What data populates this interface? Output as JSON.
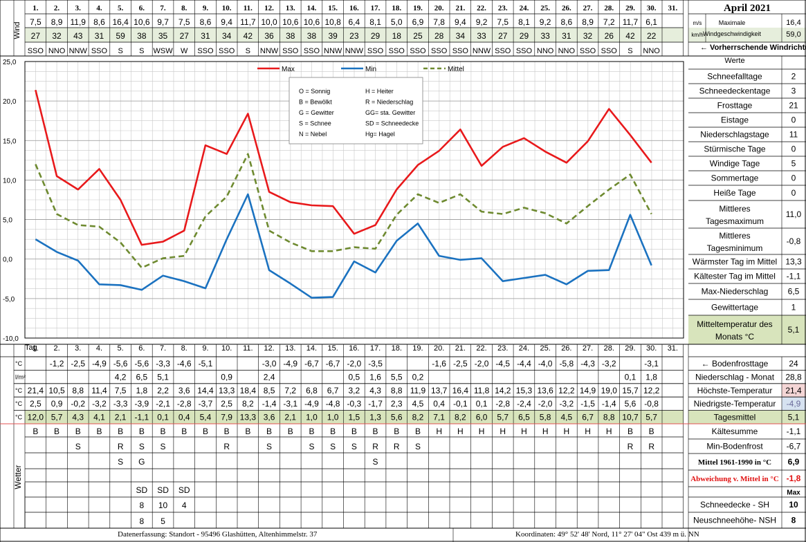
{
  "title": "April 2021",
  "days": [
    "1.",
    "2.",
    "3.",
    "4.",
    "5.",
    "6.",
    "7.",
    "8.",
    "9.",
    "10.",
    "11.",
    "12.",
    "13.",
    "14.",
    "15.",
    "16.",
    "17.",
    "18.",
    "19.",
    "20.",
    "21.",
    "22.",
    "23.",
    "24.",
    "25.",
    "26.",
    "27.",
    "28.",
    "29.",
    "30.",
    "31."
  ],
  "wind": {
    "label": "Wind",
    "ms": [
      "7,5",
      "8,9",
      "11,9",
      "8,6",
      "16,4",
      "10,6",
      "9,7",
      "7,5",
      "8,6",
      "9,4",
      "11,7",
      "10,0",
      "10,6",
      "10,6",
      "10,8",
      "6,4",
      "8,1",
      "5,0",
      "6,9",
      "7,8",
      "9,4",
      "9,2",
      "7,5",
      "8,1",
      "9,2",
      "8,6",
      "8,9",
      "7,2",
      "11,7",
      "6,1",
      ""
    ],
    "kmh": [
      "27",
      "32",
      "43",
      "31",
      "59",
      "38",
      "35",
      "27",
      "31",
      "34",
      "42",
      "36",
      "38",
      "38",
      "39",
      "23",
      "29",
      "18",
      "25",
      "28",
      "34",
      "33",
      "27",
      "29",
      "33",
      "31",
      "32",
      "26",
      "42",
      "22",
      ""
    ],
    "dir": [
      "SSO",
      "NNO",
      "NNW",
      "SSO",
      "S",
      "S",
      "WSW",
      "W",
      "SSO",
      "SSO",
      "S",
      "NNW",
      "SSO",
      "SSO",
      "NNW",
      "NNW",
      "SSO",
      "SSO",
      "SSO",
      "SSO",
      "SSO",
      "NNW",
      "SSO",
      "SSO",
      "NNO",
      "NNO",
      "SSO",
      "SSO",
      "S",
      "NNO",
      ""
    ],
    "unit_ms": "m/s",
    "unit_kmh": "km/h",
    "max_label_1": "Maximale",
    "max_label_2": "Windgeschwindigkeit",
    "max_ms": "16,4",
    "max_kmh": "59,0",
    "dir_label": "← Vorherrschende Windrichtung"
  },
  "chart_data": {
    "type": "line",
    "x": [
      1,
      2,
      3,
      4,
      5,
      6,
      7,
      8,
      9,
      10,
      11,
      12,
      13,
      14,
      15,
      16,
      17,
      18,
      19,
      20,
      21,
      22,
      23,
      24,
      25,
      26,
      27,
      28,
      29,
      30
    ],
    "ylim": [
      -10,
      25
    ],
    "yticks": [
      "25,0",
      "20,0",
      "15,0",
      "10,0",
      "5,0",
      "0,0",
      "-5,0",
      "-10,0"
    ],
    "grid": true,
    "legend_position": "top-center",
    "series": [
      {
        "name": "Max",
        "color": "#e8191b",
        "dash": "solid",
        "values": [
          21.4,
          10.5,
          8.8,
          11.4,
          7.5,
          1.8,
          2.2,
          3.6,
          14.4,
          13.3,
          18.4,
          8.5,
          7.2,
          6.8,
          6.7,
          3.2,
          4.3,
          8.8,
          11.9,
          13.7,
          16.4,
          11.8,
          14.2,
          15.3,
          13.6,
          12.2,
          14.9,
          19.0,
          15.7,
          12.2
        ]
      },
      {
        "name": "Min",
        "color": "#1b72c0",
        "dash": "solid",
        "values": [
          2.5,
          0.9,
          -0.2,
          -3.2,
          -3.3,
          -3.9,
          -2.1,
          -2.8,
          -3.7,
          2.5,
          8.2,
          -1.4,
          -3.1,
          -4.9,
          -4.8,
          -0.3,
          -1.7,
          2.3,
          4.5,
          0.4,
          -0.1,
          0.1,
          -2.8,
          -2.4,
          -2.0,
          -3.2,
          -1.5,
          -1.4,
          5.6,
          -0.8
        ]
      },
      {
        "name": "Mittel",
        "color": "#6e8a30",
        "dash": "dashed",
        "values": [
          12.0,
          5.7,
          4.3,
          4.1,
          2.1,
          -1.1,
          0.1,
          0.4,
          5.4,
          7.9,
          13.3,
          3.6,
          2.1,
          1.0,
          1.0,
          1.5,
          1.3,
          5.6,
          8.2,
          7.1,
          8.2,
          6.0,
          5.7,
          6.5,
          5.8,
          4.5,
          6.7,
          8.8,
          10.7,
          5.7
        ]
      }
    ],
    "key": [
      [
        "O = Sonnig",
        "H = Heiter"
      ],
      [
        "B = Bewölkt",
        "R = Niederschlag"
      ],
      [
        "G = Gewitter",
        "GG= sta. Gewitter"
      ],
      [
        "S = Schnee",
        "SD = Schneedecke"
      ],
      [
        "N = Nebel",
        "Hg= Hagel"
      ]
    ]
  },
  "stats": {
    "header": "Werte",
    "rows": [
      {
        "label": "Schneefalltage",
        "value": "2"
      },
      {
        "label": "Schneedeckentage",
        "value": "3"
      },
      {
        "label": "Frosttage",
        "value": "21"
      },
      {
        "label": "Eistage",
        "value": "0"
      },
      {
        "label": "Niederschlagstage",
        "value": "11"
      },
      {
        "label": "Stürmische Tage",
        "value": "0"
      },
      {
        "label": "Windige Tage",
        "value": "5"
      },
      {
        "label": "Sommertage",
        "value": "0"
      },
      {
        "label": "Heiße Tage",
        "value": "0"
      },
      {
        "label": "Mittleres",
        "label2": "Tagesmaximum",
        "value": "11,0"
      },
      {
        "label": "Mittleres",
        "label2": "Tagesminimum",
        "value": "-0,8"
      },
      {
        "label": "Wärmster Tag im Mittel",
        "value": "13,3"
      },
      {
        "label": "Kältester Tag im Mittel",
        "value": "-1,1"
      },
      {
        "label": "Max-Niederschlag",
        "value": "6,5"
      },
      {
        "label": "Gewittertage",
        "value": "1"
      },
      {
        "label": "Mitteltemperatur des",
        "label2": "Monats °C",
        "value": "5,1"
      }
    ]
  },
  "table": {
    "tag_label": "Tag",
    "rows": [
      {
        "unit": "°C",
        "label": "← Bodenfrosttage",
        "value": "24",
        "cells": [
          "",
          "-1,2",
          "-2,5",
          "-4,9",
          "-5,6",
          "-5,6",
          "-3,3",
          "-4,6",
          "-5,1",
          "",
          "",
          "-3,0",
          "-4,9",
          "-6,7",
          "-6,7",
          "-2,0",
          "-3,5",
          "",
          "",
          "-1,6",
          "-2,5",
          "-2,0",
          "-4,5",
          "-4,4",
          "-4,0",
          "-5,8",
          "-4,3",
          "-3,2",
          "",
          "-3,1",
          ""
        ]
      },
      {
        "unit": "l/m²",
        "label": "Niederschlag - Monat",
        "value": "28,8",
        "cells": [
          "",
          "",
          "",
          "",
          "4,2",
          "6,5",
          "5,1",
          "",
          "",
          "0,9",
          "",
          "2,4",
          "",
          "",
          "",
          "0,5",
          "1,6",
          "5,5",
          "0,2",
          "",
          "",
          "",
          "",
          "",
          "",
          "",
          "",
          "",
          "0,1",
          "1,8",
          ""
        ]
      },
      {
        "unit": "°C",
        "label": "Höchste-Temperatur",
        "value": "21,4",
        "cells": [
          "21,4",
          "10,5",
          "8,8",
          "11,4",
          "7,5",
          "1,8",
          "2,2",
          "3,6",
          "14,4",
          "13,3",
          "18,4",
          "8,5",
          "7,2",
          "6,8",
          "6,7",
          "3,2",
          "4,3",
          "8,8",
          "11,9",
          "13,7",
          "16,4",
          "11,8",
          "14,2",
          "15,3",
          "13,6",
          "12,2",
          "14,9",
          "19,0",
          "15,7",
          "12,2",
          ""
        ]
      },
      {
        "unit": "°C",
        "label": "Niedrigste-Temperatur",
        "value": "-4,9",
        "cells": [
          "2,5",
          "0,9",
          "-0,2",
          "-3,2",
          "-3,3",
          "-3,9",
          "-2,1",
          "-2,8",
          "-3,7",
          "2,5",
          "8,2",
          "-1,4",
          "-3,1",
          "-4,9",
          "-4,8",
          "-0,3",
          "-1,7",
          "2,3",
          "4,5",
          "0,4",
          "-0,1",
          "0,1",
          "-2,8",
          "-2,4",
          "-2,0",
          "-3,2",
          "-1,5",
          "-1,4",
          "5,6",
          "-0,8",
          ""
        ]
      },
      {
        "unit": "°C",
        "label": "Tagesmittel",
        "value": "5,1",
        "cells": [
          "12,0",
          "5,7",
          "4,3",
          "4,1",
          "2,1",
          "-1,1",
          "0,1",
          "0,4",
          "5,4",
          "7,9",
          "13,3",
          "3,6",
          "2,1",
          "1,0",
          "1,0",
          "1,5",
          "1,3",
          "5,6",
          "8,2",
          "7,1",
          "8,2",
          "6,0",
          "5,7",
          "6,5",
          "5,8",
          "4,5",
          "6,7",
          "8,8",
          "10,7",
          "5,7",
          ""
        ]
      }
    ],
    "colors": {
      "max_bg": "#f4d6d6",
      "min_bg": "#d6e2f0",
      "mean_bg": "#d8e4bc",
      "wind_bg": "#e6eedc"
    }
  },
  "weather": {
    "label": "Wetter",
    "rows": [
      [
        "B",
        "B",
        "B",
        "B",
        "B",
        "B",
        "B",
        "B",
        "B",
        "B",
        "B",
        "B",
        "B",
        "B",
        "B",
        "B",
        "B",
        "B",
        "B",
        "H",
        "H",
        "H",
        "H",
        "H",
        "H",
        "H",
        "H",
        "H",
        "B",
        "B",
        ""
      ],
      [
        "",
        "",
        "S",
        "",
        "R",
        "S",
        "S",
        "",
        "",
        "R",
        "",
        "S",
        "",
        "S",
        "S",
        "S",
        "R",
        "R",
        "S",
        "",
        "",
        "",
        "",
        "",
        "",
        "",
        "",
        "",
        "R",
        "R",
        ""
      ],
      [
        "",
        "",
        "",
        "",
        "S",
        "G",
        "",
        "",
        "",
        "",
        "",
        "",
        "",
        "",
        "",
        "",
        "S",
        "",
        "",
        "",
        "",
        "",
        "",
        "",
        "",
        "",
        "",
        "",
        "",
        "",
        ""
      ],
      [
        "",
        "",
        "",
        "",
        "",
        "SD",
        "SD",
        "SD",
        "",
        "",
        "",
        "",
        "",
        "",
        "",
        "",
        "",
        "",
        "",
        "",
        "",
        "",
        "",
        "",
        "",
        "",
        "",
        "",
        "",
        "",
        ""
      ],
      [
        "",
        "",
        "",
        "",
        "",
        "8",
        "10",
        "4",
        "",
        "",
        "",
        "",
        "",
        "",
        "",
        "",
        "",
        "",
        "",
        "",
        "",
        "",
        "",
        "",
        "",
        "",
        "",
        "",
        "",
        "",
        ""
      ],
      [
        "",
        "",
        "",
        "",
        "",
        "8",
        "5",
        "",
        "",
        "",
        "",
        "",
        "",
        "",
        "",
        "",
        "",
        "",
        "",
        "",
        "",
        "",
        "",
        "",
        "",
        "",
        "",
        "",
        "",
        "",
        ""
      ]
    ],
    "side": [
      {
        "label": "Kältesumme",
        "value": "-1,1"
      },
      {
        "label": "Min-Bodenfrost",
        "value": "-6,7"
      },
      {
        "label": "Mittel 1961-1990 in °C",
        "value": "6,9"
      },
      {
        "label": "Abweichung v. Mittel in °C",
        "value": "-1,8"
      },
      {
        "label": "",
        "value": "Max"
      },
      {
        "label": "Schneedecke -  SH",
        "value": "10"
      },
      {
        "label": "Neuschneehöhe- NSH",
        "value": "8"
      }
    ]
  },
  "footer": {
    "left": "Datenerfassung:  Standort -  95496  Glashütten, Altenhimmelstr. 37",
    "right": "Koordinaten:  49° 52' 48' Nord,   11° 27' 04\" Ost   439 m ü. NN"
  }
}
